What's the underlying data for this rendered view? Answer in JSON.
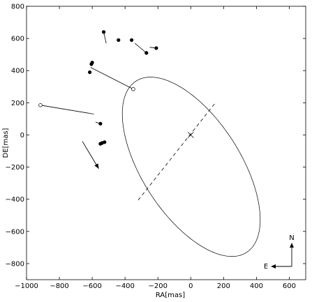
{
  "chart_data": {
    "type": "scatter",
    "title": "",
    "xlabel": "RA[mas]",
    "ylabel": "DE[mas]",
    "xlim": [
      -1000,
      700
    ],
    "ylim": [
      -900,
      800
    ],
    "x_ticks": [
      -1000,
      -800,
      -600,
      -400,
      -200,
      0,
      200,
      400,
      600
    ],
    "x_tick_labels": [
      "−1000",
      "−800",
      "−600",
      "−400",
      "−200",
      "0",
      "200",
      "400",
      "600"
    ],
    "y_ticks": [
      -800,
      -600,
      -400,
      -200,
      0,
      200,
      400,
      600,
      800
    ],
    "y_tick_labels": [
      "−800",
      "−600",
      "−400",
      "−200",
      "0",
      "200",
      "400",
      "600",
      "800"
    ],
    "grid": false,
    "legend": "none",
    "orbit": {
      "description_free": true,
      "center": [
        3,
        -198
      ],
      "semi_major": 630,
      "semi_minor": 300,
      "angle_deg": -58
    },
    "focus": [
      0,
      0
    ],
    "line_of_nodes": [
      [
        -320,
        -405
      ],
      [
        150,
        200
      ]
    ],
    "filled_points": [
      {
        "obs": [
          -530,
          640
        ],
        "orbit": [
          -515,
          570
        ]
      },
      {
        "obs": [
          -440,
          590
        ],
        "orbit": [
          -440,
          590
        ]
      },
      {
        "obs": [
          -360,
          590
        ],
        "orbit": [
          -360,
          590
        ]
      },
      {
        "obs": [
          -270,
          510
        ],
        "orbit": [
          -340,
          570
        ]
      },
      {
        "obs": [
          -210,
          540
        ],
        "orbit": [
          -250,
          545
        ]
      },
      {
        "obs": [
          -600,
          450
        ],
        "orbit": [
          -600,
          450
        ]
      },
      {
        "obs": [
          -605,
          440
        ],
        "orbit": [
          -605,
          440
        ]
      },
      {
        "obs": [
          -615,
          390
        ],
        "orbit": [
          -615,
          395
        ]
      },
      {
        "obs": [
          -550,
          70
        ],
        "orbit": [
          -580,
          80
        ]
      },
      {
        "obs": [
          -550,
          -55
        ],
        "orbit": [
          -548,
          -50
        ]
      },
      {
        "obs": [
          -540,
          -50
        ],
        "orbit": [
          -540,
          -48
        ]
      },
      {
        "obs": [
          -525,
          -45
        ],
        "orbit": [
          -525,
          -45
        ]
      }
    ],
    "open_points": [
      {
        "obs": [
          -350,
          285
        ],
        "orbit": [
          -610,
          420
        ]
      },
      {
        "obs": [
          -915,
          185
        ],
        "orbit": [
          -590,
          130
        ]
      }
    ],
    "motion_arrow": {
      "from": [
        -660,
        -40
      ],
      "to": [
        -560,
        -210
      ]
    },
    "compass": {
      "n_label": "N",
      "e_label": "E"
    }
  }
}
